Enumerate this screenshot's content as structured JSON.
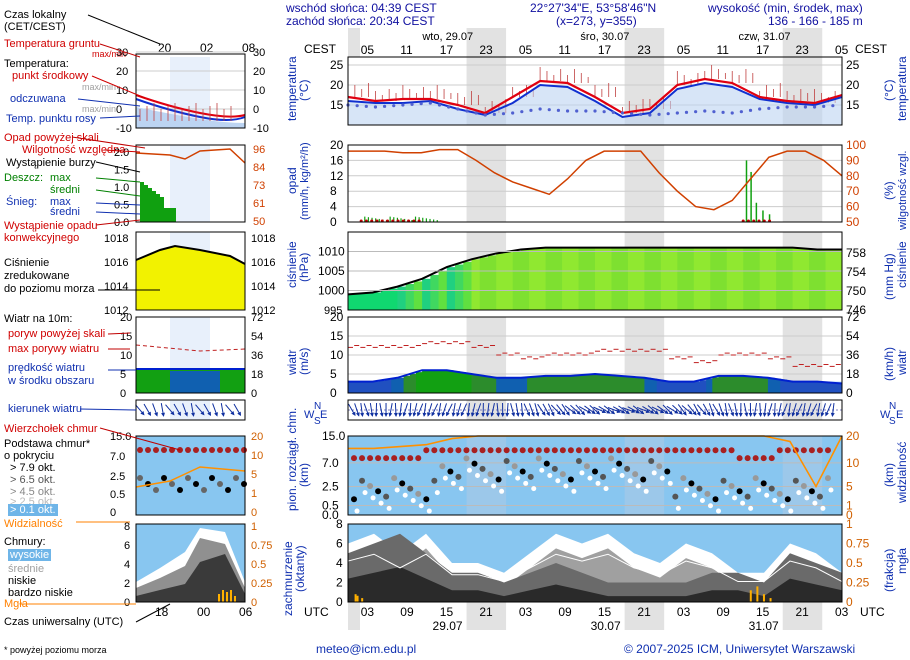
{
  "header": {
    "sunrise": "wschód słońca: 04:39 CEST",
    "sunset": "zachód słońca: 20:34 CEST",
    "coords": "22°27'34\"E, 53°58'46\"N",
    "grid": "(x=273, y=355)",
    "elev_label": "wysokość (min, środek, max)",
    "elev_values": "136 - 166 - 185 m"
  },
  "legend": {
    "local_time": "Czas lokalny",
    "local_time_zone": "(CET/CEST)",
    "soil_temp": "Temperatura gruntu",
    "soil_temp_sub": "max/min",
    "temperature": "Temperatura:",
    "temp_mid": "punkt środkowy",
    "temp_maxmin": "max/min",
    "felt": "odczuwana",
    "felt_sub": "max/min",
    "dewpoint": "Temp. punktu rosy",
    "precip_above": "Opad powyżej skali",
    "humidity": "Wilgotność względna",
    "storm": "Wystąpienie burzy",
    "rain": "Deszcz:",
    "rain_max": "max",
    "rain_mean": "średni",
    "snow": "Śnieg:",
    "snow_max": "max",
    "snow_mean": "średni",
    "precip_occ": "Wystąpienie opadu",
    "precip_occ2": "konwekcyjnego",
    "pressure1": "Ciśnienie",
    "pressure2": "zredukowane",
    "pressure3": "do poziomu morza",
    "wind_height": "Wiatr na 10m:",
    "gust_above": "poryw powyżej skali",
    "gust_max": "max porywy wiatru",
    "wind_speed": "prędkość wiatru",
    "wind_speed2": "w środku obszaru",
    "wind_dir": "kierunek wiatru",
    "cloud_top": "Wierzchołek chmur",
    "cloud_base1": "Podstawa chmur*",
    "cloud_base2": "o pokryciu",
    "okt79": "> 7.9 okt.",
    "okt65": "> 6.5 okt.",
    "okt45": "> 4.5 okt.",
    "okt25": "> 2.5 okt.",
    "okt01": "> 0.1 okt.",
    "visibility": "Widzialność",
    "clouds": "Chmury:",
    "c_high": "wysokie",
    "c_mid": "średnie",
    "c_low": "niskie",
    "c_vlow": "bardzo niskie",
    "fog": "Mgła",
    "utc": "Czas uniwersalny (UTC)",
    "footnote": "* powyżej poziomu morza"
  },
  "mini_axis": {
    "top_ticks": [
      "20",
      "02",
      "08"
    ],
    "bottom_ticks": [
      "18",
      "00",
      "06"
    ]
  },
  "axes": {
    "cest": "CEST",
    "utc": "UTC",
    "days_top": [
      "wto, 29.07",
      "śro, 30.07",
      "czw, 31.07"
    ],
    "hours_top": [
      "05",
      "11",
      "17",
      "23",
      "05",
      "11",
      "17",
      "23",
      "05",
      "11",
      "17",
      "23",
      "05"
    ],
    "hours_bottom": [
      "03",
      "09",
      "15",
      "21",
      "03",
      "09",
      "15",
      "21",
      "03",
      "09",
      "15",
      "21",
      "03"
    ],
    "days_bottom": [
      "29.07",
      "30.07",
      "31.07"
    ],
    "temp_label": "temperatura",
    "temp_unit": "(°C)",
    "precip_label": "opad",
    "precip_unit": "(mm/h, kg/m²/h)",
    "hum_label": "wilgotność wzgl.",
    "hum_unit": "(%)",
    "pres_label": "ciśnienie",
    "pres_unit_left": "(hPa)",
    "pres_unit_right": "(mm Hg)",
    "wind_label": "wiatr",
    "wind_unit_left": "(m/s)",
    "wind_unit_right": "(km/h)",
    "cloud_label": "pion. rozciągł. chm.",
    "cloud_unit": "(km)",
    "vis_label": "widzialność",
    "vis_unit": "(km)",
    "cover_label": "zachmurzenie",
    "cover_unit": "(oktanty)",
    "fog_label": "mgła",
    "fog_unit": "(frakcja)",
    "dir_letters": [
      "N",
      "W",
      "E",
      "S"
    ]
  },
  "footer": {
    "email": "meteo@icm.edu.pl",
    "copyright": "© 2007-2025 ICM, Uniwersytet Warszawski"
  },
  "chart_data": [
    {
      "type": "line",
      "title": "temperatura",
      "ylabel": "(°C)",
      "ylim": [
        10,
        27
      ],
      "yticks": [
        15,
        20,
        25
      ],
      "x_hours_utc": [
        0,
        6,
        12,
        18,
        24,
        30,
        36,
        42,
        48,
        54,
        60,
        66,
        72
      ],
      "series": [
        {
          "name": "punkt środkowy",
          "values": [
            17,
            16,
            16.5,
            16.5,
            15,
            13,
            17,
            21,
            20.5,
            17,
            13,
            14,
            20,
            21.5,
            20.5,
            17,
            16,
            15.5,
            17.5
          ]
        },
        {
          "name": "odczuwana",
          "values": [
            16,
            15.5,
            15.5,
            16,
            14,
            12.5,
            15.5,
            20,
            19.5,
            16,
            12,
            13,
            19,
            20.5,
            19.5,
            16.5,
            15.5,
            15,
            17
          ]
        },
        {
          "name": "Temp. punktu rosy",
          "values": [
            15,
            14.5,
            15,
            15.5,
            14,
            12.5,
            13,
            14,
            13.5,
            13.5,
            13,
            12.5,
            13,
            13.5,
            13,
            14,
            14.5,
            14.5,
            15
          ]
        }
      ]
    },
    {
      "type": "bar",
      "title": "opad / wilgotność wzgl.",
      "ylim_left": [
        0,
        20
      ],
      "yticks_left": [
        0,
        4,
        8,
        12,
        16,
        20
      ],
      "ylim_right": [
        50,
        100
      ],
      "yticks_right": [
        50,
        60,
        70,
        80,
        90,
        100
      ],
      "series": [
        {
          "name": "Wilgotność względna",
          "values": [
            96,
            96,
            96,
            95,
            95,
            97,
            97,
            90,
            82,
            76,
            72,
            68,
            78,
            90,
            96,
            96,
            96,
            82,
            70,
            60,
            58,
            64,
            78,
            92,
            96,
            96,
            90,
            80
          ]
        }
      ]
    },
    {
      "type": "area",
      "title": "ciśnienie",
      "ylim_left": [
        995,
        1015
      ],
      "yticks_left": [
        1000,
        1005,
        1010
      ],
      "ylim_right": [
        746,
        761
      ],
      "yticks_right": [
        746,
        750,
        754,
        758
      ],
      "series": [
        {
          "name": "Ciśnienie zredukowane do poziomu morza",
          "values": [
            999,
            999.5,
            1001,
            1003,
            1006,
            1008,
            1009.5,
            1010.5,
            1011,
            1011,
            1011,
            1011,
            1011,
            1011,
            1011,
            1011,
            1011,
            1011,
            1011,
            1010.5,
            1010.5
          ]
        }
      ]
    },
    {
      "type": "area",
      "title": "wiatr",
      "ylim_left": [
        0,
        20
      ],
      "yticks_left": [
        0,
        5,
        10,
        15,
        20
      ],
      "ylim_right": [
        0,
        72
      ],
      "yticks_right": [
        0,
        18,
        36,
        54,
        72
      ],
      "series": [
        {
          "name": "prędkość wiatru",
          "values": [
            3,
            3,
            4,
            6,
            6,
            5,
            4,
            4,
            4.5,
            4.5,
            5,
            4.5,
            4,
            3,
            3,
            4.5,
            4.5,
            4,
            3,
            3,
            2.5
          ]
        },
        {
          "name": "max porywy wiatru",
          "values": [
            12,
            12,
            12,
            13,
            13,
            12,
            10,
            9,
            10,
            10,
            11,
            11,
            11,
            9,
            8,
            10,
            10,
            9,
            7,
            7,
            6
          ]
        }
      ]
    },
    {
      "type": "scatter",
      "title": "pion. rozciągł. chm. / widzialność",
      "ylim_left": [
        0,
        15
      ],
      "yticks_left": [
        0,
        0.5,
        2.5,
        7.0,
        15.0
      ],
      "yticks_right": [
        0,
        1,
        5,
        10,
        20
      ],
      "series": [
        {
          "name": "Wierzchołek chmur",
          "values": [
            11,
            11,
            11,
            11,
            11,
            11,
            11,
            11,
            11,
            11,
            11,
            11,
            11,
            11,
            11,
            11,
            11,
            11,
            11,
            11
          ]
        },
        {
          "name": "Widzialność",
          "values": [
            12,
            12,
            13,
            14,
            18,
            20,
            20,
            20,
            20,
            20,
            20,
            20,
            20,
            20,
            20,
            20,
            20,
            16,
            2,
            20
          ]
        }
      ]
    },
    {
      "type": "area",
      "title": "zachmurzenie / mgła",
      "ylim_left": [
        0,
        8
      ],
      "yticks_left": [
        0,
        2,
        4,
        6,
        8
      ],
      "ylim_right": [
        0,
        1
      ],
      "yticks_right": [
        0,
        0.25,
        0.5,
        0.75,
        1
      ],
      "series": [
        {
          "name": "wysokie",
          "values": [
            6,
            7,
            5,
            7,
            4,
            4,
            3,
            5,
            7,
            6,
            7,
            5,
            4,
            6,
            5,
            3,
            3,
            6,
            5,
            3
          ]
        },
        {
          "name": "niskie",
          "values": [
            4,
            5,
            6,
            4,
            2,
            2,
            1,
            2,
            3,
            2,
            1,
            1,
            1,
            1,
            2,
            2,
            1,
            4,
            3,
            2
          ]
        }
      ]
    }
  ]
}
